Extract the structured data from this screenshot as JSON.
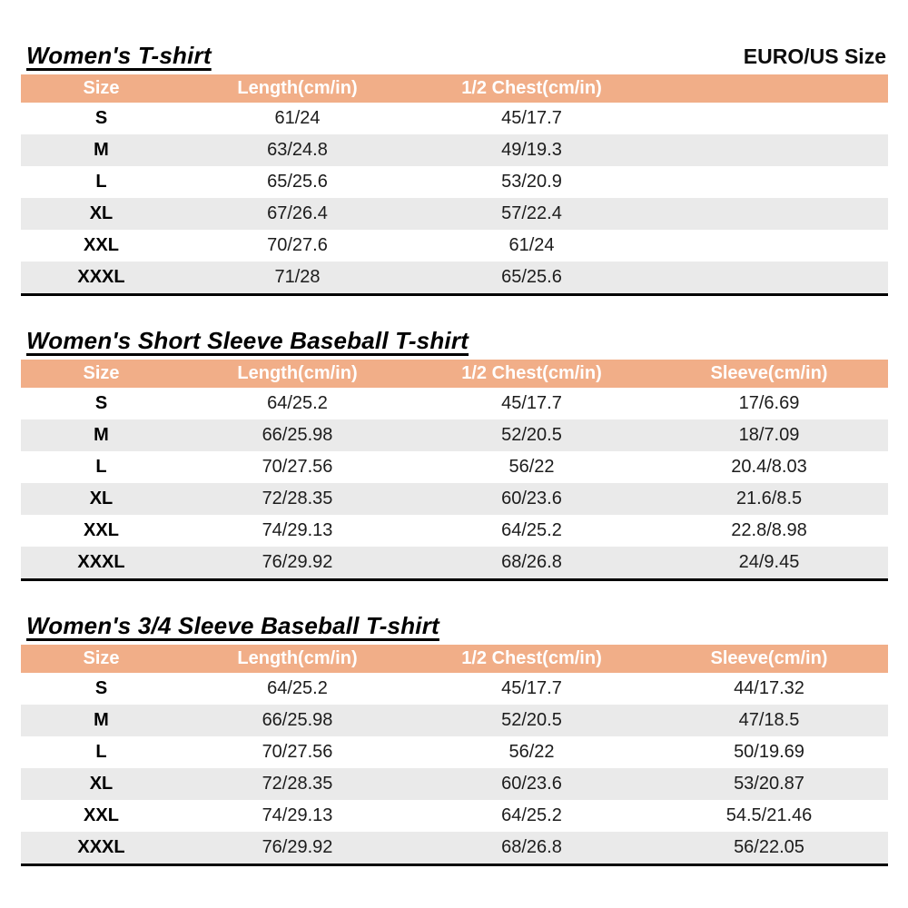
{
  "page": {
    "corner_label": "EURO/US Size"
  },
  "colors": {
    "header_bg": "#F1AE88",
    "header_text": "#FFFFFF",
    "alt_row_bg": "#EAEAEA",
    "border": "#000000"
  },
  "tables": [
    {
      "title": "Women's T-shirt",
      "columns": [
        "Size",
        "Length(cm/in)",
        "1/2 Chest(cm/in)",
        ""
      ],
      "rows": [
        [
          "S",
          "61/24",
          "45/17.7",
          ""
        ],
        [
          "M",
          "63/24.8",
          "49/19.3",
          ""
        ],
        [
          "L",
          "65/25.6",
          "53/20.9",
          ""
        ],
        [
          "XL",
          "67/26.4",
          "57/22.4",
          ""
        ],
        [
          "XXL",
          "70/27.6",
          "61/24",
          ""
        ],
        [
          "XXXL",
          "71/28",
          "65/25.6",
          ""
        ]
      ]
    },
    {
      "title": "Women's Short Sleeve Baseball T-shirt",
      "columns": [
        "Size",
        "Length(cm/in)",
        "1/2 Chest(cm/in)",
        "Sleeve(cm/in)"
      ],
      "rows": [
        [
          "S",
          "64/25.2",
          "45/17.7",
          "17/6.69"
        ],
        [
          "M",
          "66/25.98",
          "52/20.5",
          "18/7.09"
        ],
        [
          "L",
          "70/27.56",
          "56/22",
          "20.4/8.03"
        ],
        [
          "XL",
          "72/28.35",
          "60/23.6",
          "21.6/8.5"
        ],
        [
          "XXL",
          "74/29.13",
          "64/25.2",
          "22.8/8.98"
        ],
        [
          "XXXL",
          "76/29.92",
          "68/26.8",
          "24/9.45"
        ]
      ]
    },
    {
      "title": "Women's 3/4 Sleeve Baseball T-shirt",
      "columns": [
        "Size",
        "Length(cm/in)",
        "1/2 Chest(cm/in)",
        "Sleeve(cm/in)"
      ],
      "rows": [
        [
          "S",
          "64/25.2",
          "45/17.7",
          "44/17.32"
        ],
        [
          "M",
          "66/25.98",
          "52/20.5",
          "47/18.5"
        ],
        [
          "L",
          "70/27.56",
          "56/22",
          "50/19.69"
        ],
        [
          "XL",
          "72/28.35",
          "60/23.6",
          "53/20.87"
        ],
        [
          "XXL",
          "74/29.13",
          "64/25.2",
          "54.5/21.46"
        ],
        [
          "XXXL",
          "76/29.92",
          "68/26.8",
          "56/22.05"
        ]
      ]
    }
  ]
}
